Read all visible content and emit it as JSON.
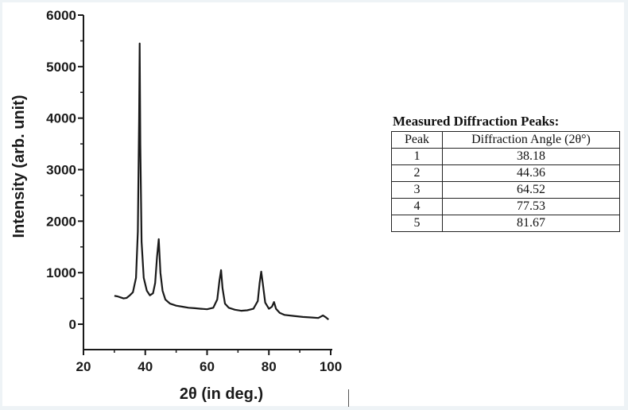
{
  "chart_data": {
    "type": "line",
    "xlabel": "2θ (in deg.)",
    "ylabel": "Intensity (arb. unit)",
    "xlim": [
      20,
      100
    ],
    "ylim": [
      -500,
      6000
    ],
    "xticks": [
      "20",
      "40",
      "60",
      "80",
      "100"
    ],
    "yticks": [
      "0",
      "1000",
      "2000",
      "3000",
      "4000",
      "5000",
      "6000"
    ],
    "xtick_values": [
      20,
      40,
      60,
      80,
      100
    ],
    "ytick_values": [
      0,
      1000,
      2000,
      3000,
      4000,
      5000,
      6000
    ],
    "line_color": "#1a1a1a",
    "series": [
      {
        "x": [
          30,
          31,
          32,
          33,
          34,
          35,
          36,
          37,
          37.6,
          38.0,
          38.18,
          38.4,
          38.8,
          39.5,
          40.5,
          41.5,
          42.5,
          43.2,
          43.8,
          44.36,
          44.9,
          45.6,
          46.5,
          48,
          50,
          52,
          54,
          56,
          58,
          60,
          62,
          63.3,
          64.0,
          64.52,
          65.0,
          65.8,
          67,
          69,
          71,
          73,
          75,
          76.4,
          77.0,
          77.53,
          78.0,
          78.8,
          80,
          81.0,
          81.67,
          82.3,
          83.5,
          85,
          88,
          91,
          94,
          96,
          97.5,
          98.5,
          99.3
        ],
        "y": [
          550,
          540,
          520,
          500,
          510,
          560,
          620,
          900,
          1800,
          4000,
          5450,
          3500,
          1600,
          900,
          650,
          560,
          600,
          800,
          1300,
          1650,
          1000,
          650,
          480,
          400,
          360,
          340,
          320,
          310,
          300,
          290,
          320,
          480,
          850,
          1050,
          700,
          400,
          320,
          280,
          260,
          270,
          300,
          450,
          800,
          1020,
          800,
          420,
          300,
          340,
          430,
          300,
          220,
          180,
          160,
          140,
          130,
          120,
          170,
          130,
          90
        ]
      }
    ]
  },
  "peaks_table": {
    "title": "Measured Diffraction Peaks:",
    "headers": [
      "Peak",
      "Diffraction Angle (2θ°)"
    ],
    "rows": [
      [
        "1",
        "38.18"
      ],
      [
        "2",
        "44.36"
      ],
      [
        "3",
        "64.52"
      ],
      [
        "4",
        "77.53"
      ],
      [
        "5",
        "81.67"
      ]
    ]
  }
}
